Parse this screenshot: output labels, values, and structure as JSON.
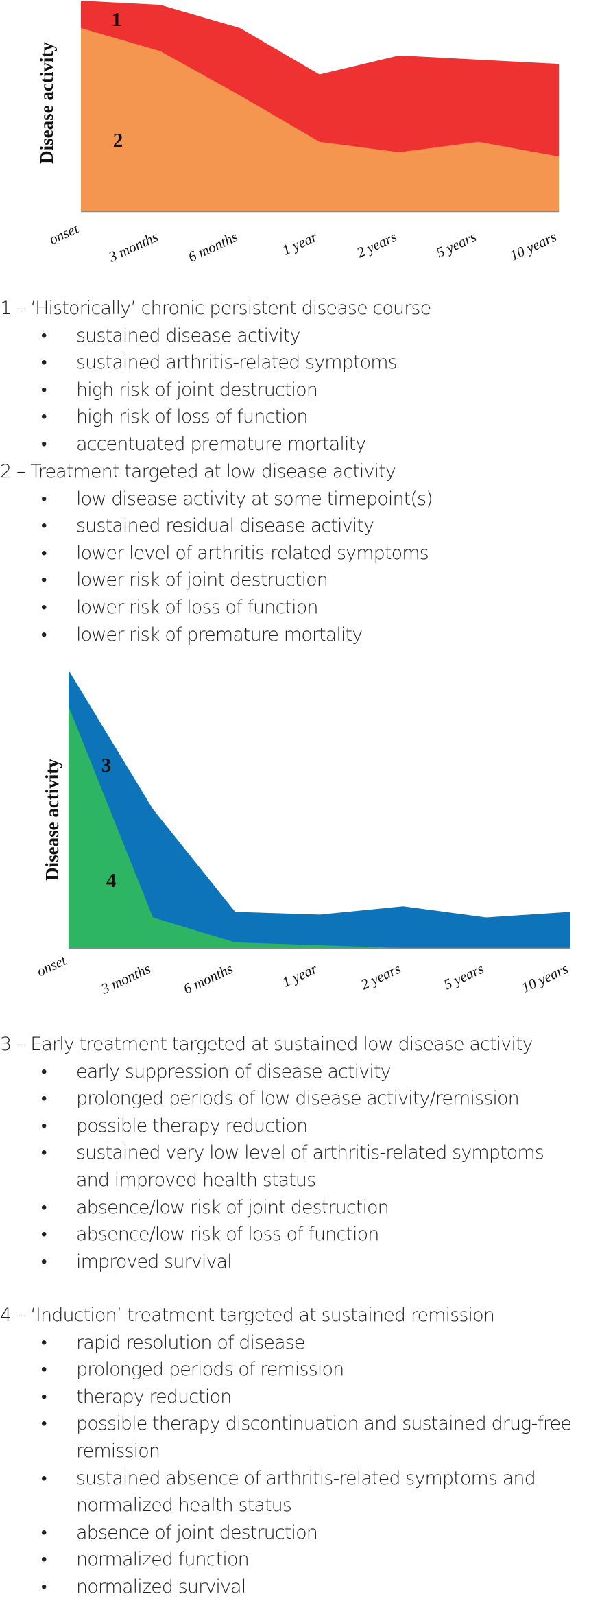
{
  "chart_data": [
    {
      "type": "area",
      "stacked": false,
      "title": "",
      "xlabel": "",
      "ylabel": "Disease activity",
      "categories": [
        "onset",
        "3 months",
        "6 months",
        "1 year",
        "2 years",
        "5 years",
        "10 years"
      ],
      "ylim": [
        0,
        100
      ],
      "grid": false,
      "series": [
        {
          "name": "1",
          "label": "1",
          "color": "#EE3232",
          "values": [
            100,
            98,
            87,
            65,
            74,
            72,
            70
          ]
        },
        {
          "name": "2",
          "label": "2",
          "color": "#F59650",
          "values": [
            87,
            76,
            55,
            33,
            28,
            33,
            26
          ]
        }
      ]
    },
    {
      "type": "area",
      "stacked": false,
      "title": "",
      "xlabel": "",
      "ylabel": "Disease activity",
      "categories": [
        "onset",
        "3 months",
        "6 months",
        "1 year",
        "2 years",
        "5 years",
        "10 years"
      ],
      "ylim": [
        0,
        100
      ],
      "grid": false,
      "series": [
        {
          "name": "3",
          "label": "3",
          "color": "#0E74BA",
          "values": [
            100,
            50,
            13,
            12,
            15,
            11,
            13
          ]
        },
        {
          "name": "4",
          "label": "4",
          "color": "#2DB563",
          "values": [
            87,
            11,
            2,
            1,
            0,
            0,
            0
          ]
        }
      ]
    }
  ],
  "sections": [
    {
      "heading": "1 – ‘Historically’ chronic persistent disease course",
      "items": [
        "sustained disease activity",
        "sustained arthritis-related symptoms",
        "high risk of joint destruction",
        "high risk of loss of function",
        "accentuated premature mortality"
      ]
    },
    {
      "heading": "2 – Treatment targeted at low disease activity",
      "items": [
        "low disease activity at some timepoint(s)",
        "sustained residual disease activity",
        "lower level of arthritis-related symptoms",
        "lower risk of joint destruction",
        "lower risk of loss of function",
        "lower risk of premature mortality"
      ]
    },
    {
      "heading": "3 – Early treatment targeted at sustained low disease activity",
      "items": [
        "early suppression of disease activity",
        "prolonged periods of low disease activity/remission",
        "possible therapy reduction",
        "sustained very low level of arthritis-related symptoms and improved health status",
        "absence/low risk of joint destruction",
        "absence/low risk of loss of function",
        "improved survival"
      ]
    },
    {
      "heading": "4 – ‘Induction’ treatment targeted at sustained remission",
      "items": [
        "rapid resolution of disease",
        "prolonged periods of remission",
        "therapy reduction",
        "possible therapy discontinuation and sustained drug-free remission",
        "sustained absence of arthritis-related symptoms and normalized health status",
        "absence of joint destruction",
        "normalized function",
        "normalized survival"
      ]
    }
  ],
  "bullet_glyph": "•"
}
